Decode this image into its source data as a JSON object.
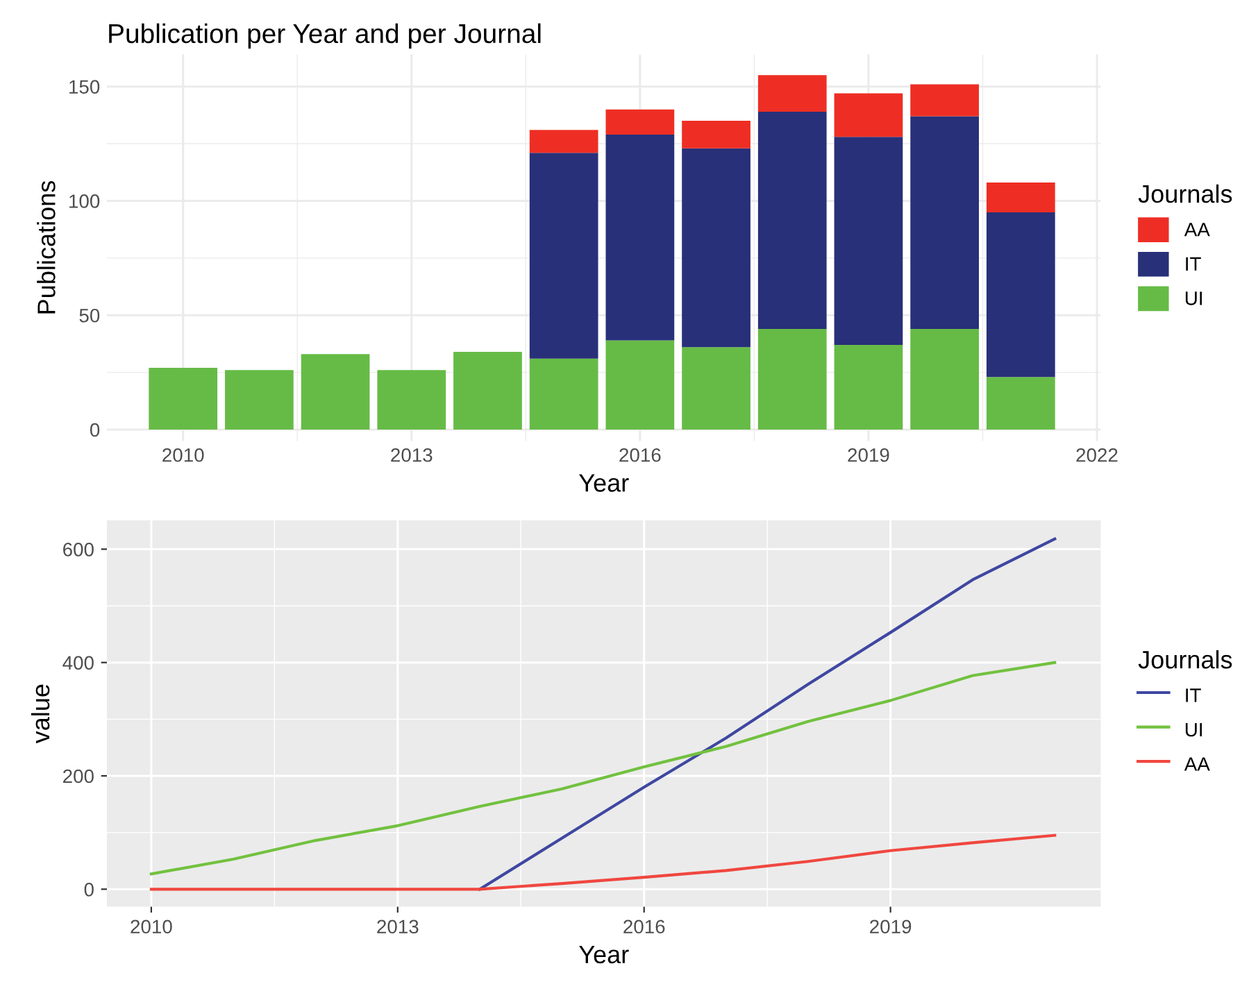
{
  "chart_data": [
    {
      "type": "bar",
      "title": "Publication per Year and per Journal",
      "xlabel": "Year",
      "ylabel": "Publications",
      "legend_title": "Journals",
      "stacked": true,
      "x": [
        2010,
        2011,
        2012,
        2013,
        2014,
        2015,
        2016,
        2017,
        2018,
        2019,
        2020,
        2021
      ],
      "series": [
        {
          "name": "UI",
          "color": "#66bb46",
          "values": [
            27,
            26,
            33,
            26,
            34,
            31,
            39,
            36,
            44,
            37,
            44,
            23
          ]
        },
        {
          "name": "IT",
          "color": "#283079",
          "values": [
            null,
            null,
            null,
            null,
            null,
            90,
            90,
            87,
            95,
            91,
            93,
            72
          ]
        },
        {
          "name": "AA",
          "color": "#ee2e24",
          "values": [
            null,
            null,
            null,
            null,
            null,
            10,
            11,
            12,
            16,
            19,
            14,
            13
          ]
        }
      ],
      "xlim": [
        2009.0,
        2022.05
      ],
      "xticks": [
        2010,
        2013,
        2016,
        2019,
        2022
      ],
      "ylim": [
        -5,
        164
      ],
      "yticks": [
        0,
        50,
        100,
        150
      ],
      "grid": true,
      "legend": "right"
    },
    {
      "type": "line",
      "xlabel": "Year",
      "ylabel": "value",
      "legend_title": "Journals",
      "series": [
        {
          "name": "IT",
          "color": "#3f47a0",
          "x": [
            2014,
            2015,
            2016,
            2017,
            2018,
            2019,
            2020,
            2021
          ],
          "values": [
            0,
            90,
            180,
            267,
            362,
            453,
            546,
            618
          ]
        },
        {
          "name": "UI",
          "color": "#72c13f",
          "x": [
            2010,
            2011,
            2012,
            2013,
            2014,
            2015,
            2016,
            2017,
            2018,
            2019,
            2020,
            2021
          ],
          "values": [
            27,
            53,
            86,
            112,
            146,
            177,
            216,
            252,
            296,
            333,
            377,
            400
          ]
        },
        {
          "name": "AA",
          "color": "#f0473f",
          "x": [
            2010,
            2011,
            2012,
            2013,
            2014,
            2015,
            2016,
            2017,
            2018,
            2019,
            2020,
            2021
          ],
          "values": [
            0,
            0,
            0,
            0,
            0,
            10,
            21,
            33,
            49,
            68,
            82,
            95
          ]
        }
      ],
      "xlim": [
        2009.46,
        2021.56
      ],
      "xticks": [
        2010,
        2013,
        2016,
        2019
      ],
      "ylim": [
        -31,
        651
      ],
      "yticks": [
        0,
        200,
        400,
        600
      ],
      "grid": true,
      "legend": "right"
    }
  ]
}
